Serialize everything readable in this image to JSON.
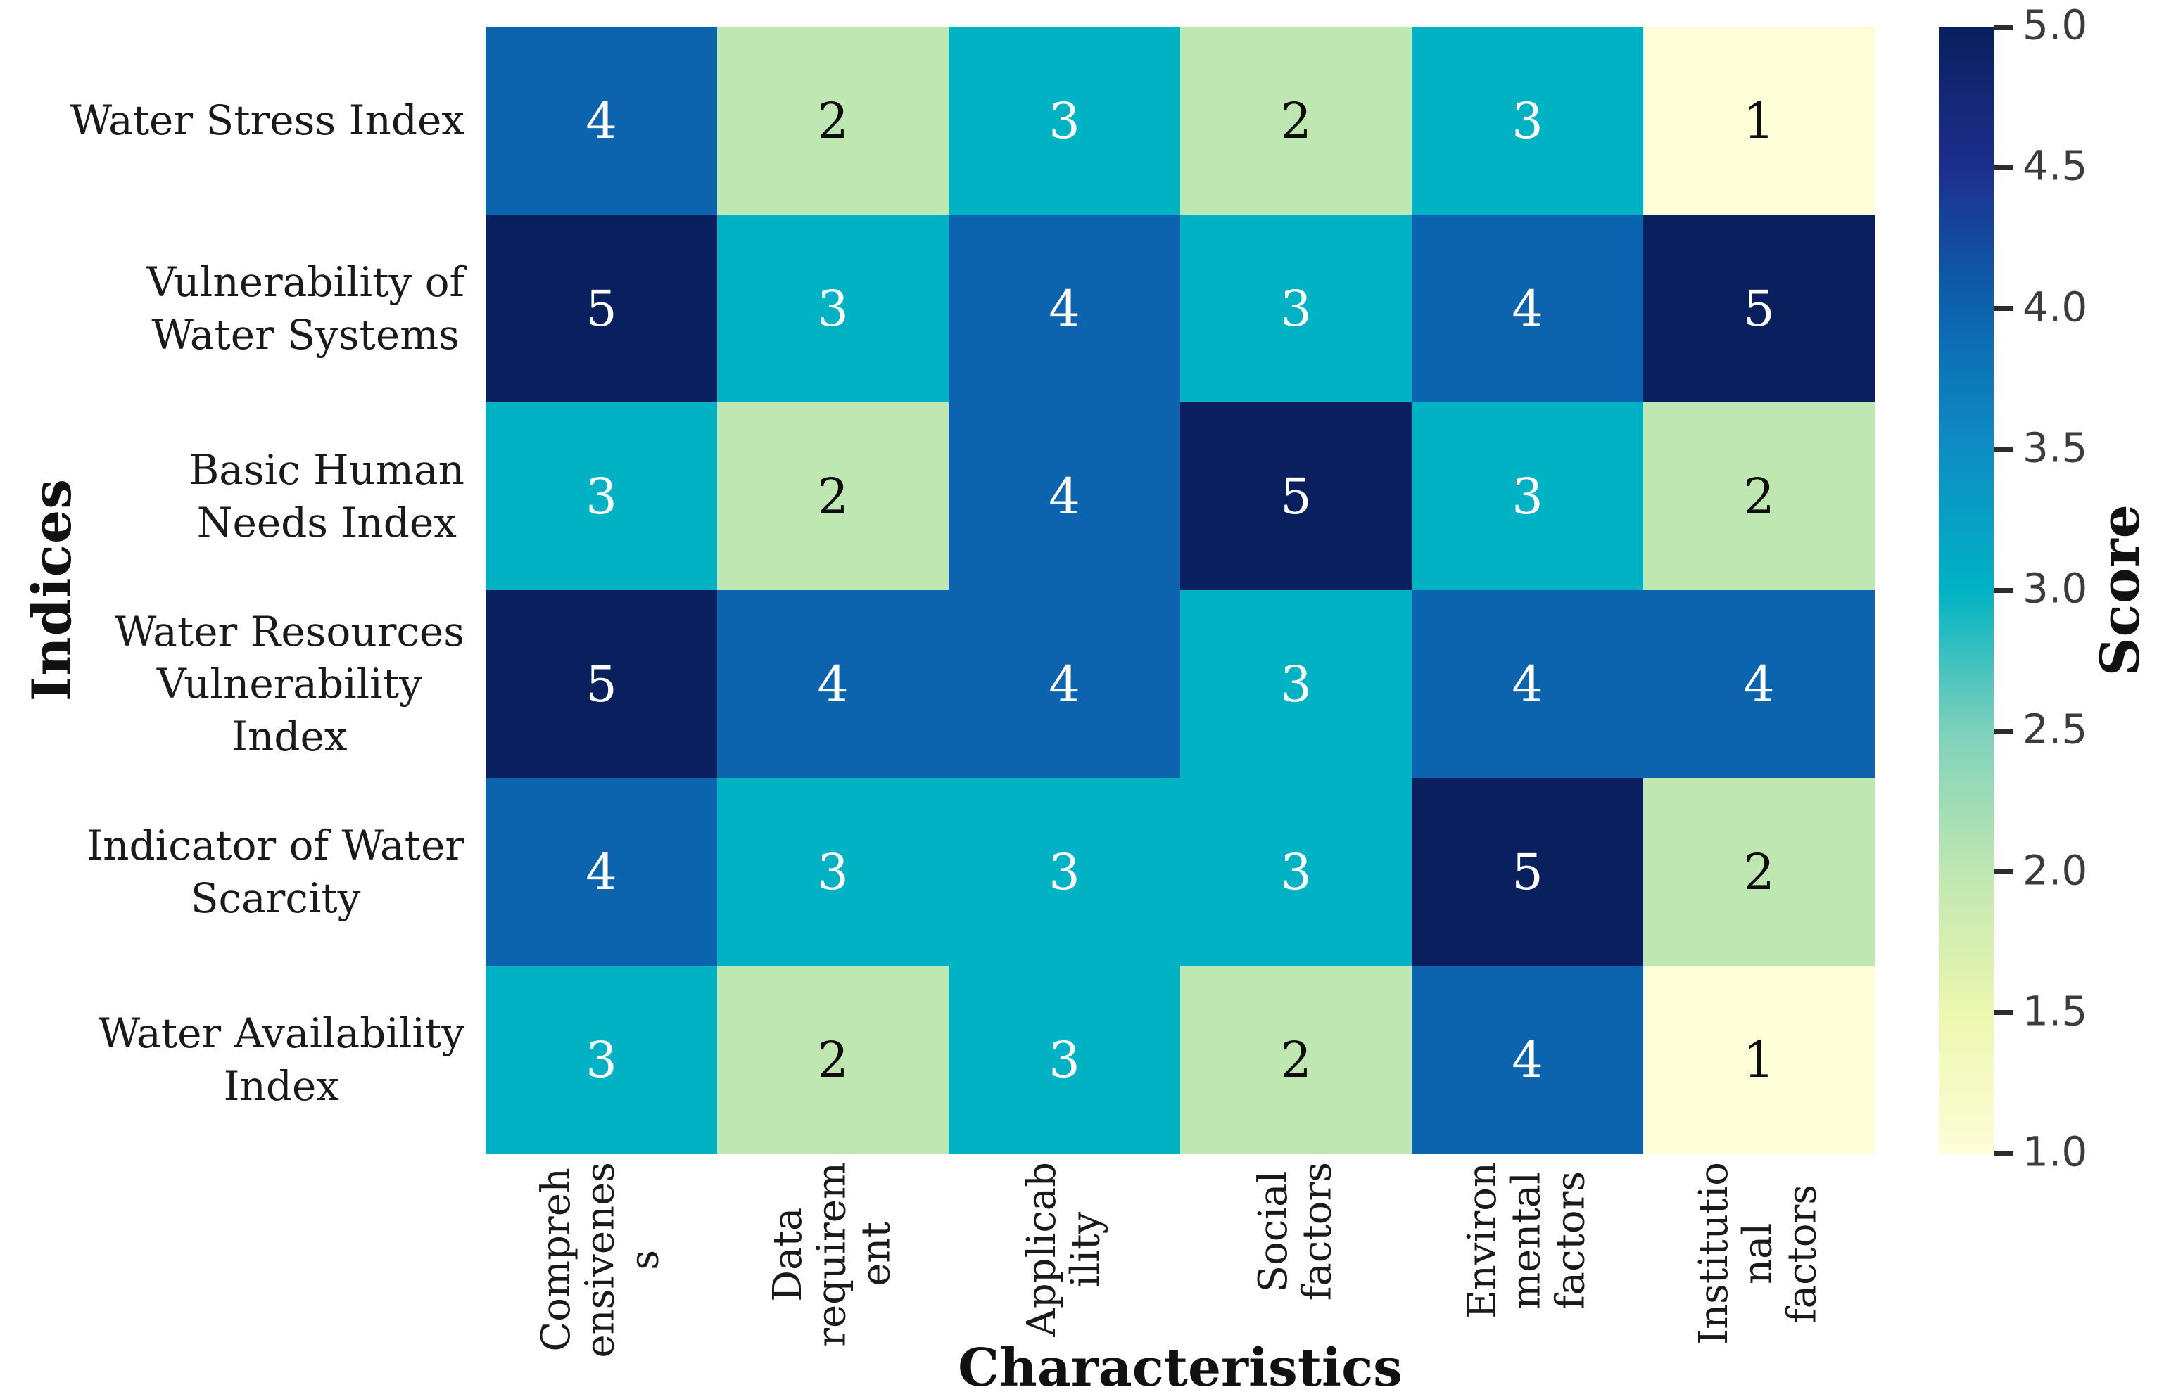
{
  "chart_data": {
    "type": "heatmap",
    "title": "",
    "xlabel": "Characteristics",
    "ylabel": "Indices",
    "colorbar_label": "Score",
    "x_categories": [
      "Comprehensiveness",
      "Data requirement",
      "Applicability",
      "Social factors",
      "Environmental factors",
      "Institutional factors"
    ],
    "x_tick_display": [
      "Compreh\nensivenes\ns",
      "Data\nrequirem\nent",
      "Applicab\nility",
      "Social\nfactors",
      "Environ\nmental\nfactors",
      "Institutio\nnal\nfactors"
    ],
    "y_categories": [
      "Water Stress Index",
      "Vulnerability of Water Systems",
      "Basic Human Needs Index",
      "Water Resources Vulnerability Index",
      "Indicator of Water Scarcity",
      "Water Availability Index"
    ],
    "y_tick_display": [
      "Water Stress Index",
      "Vulnerability of\nWater Systems",
      "Basic Human\nNeeds Index",
      "Water Resources\nVulnerability\nIndex",
      "Indicator of Water\nScarcity",
      "Water Availability\nIndex"
    ],
    "values": [
      [
        4,
        2,
        3,
        2,
        3,
        1
      ],
      [
        5,
        3,
        4,
        3,
        4,
        5
      ],
      [
        3,
        2,
        4,
        5,
        3,
        2
      ],
      [
        5,
        4,
        4,
        3,
        4,
        4
      ],
      [
        4,
        3,
        3,
        3,
        5,
        2
      ],
      [
        3,
        2,
        3,
        2,
        4,
        1
      ]
    ],
    "value_colors": {
      "1": "#fdfdd7",
      "2": "#bfe7b2",
      "3": "#00b2c4",
      "4": "#0c63ae",
      "5": "#0a1f5e"
    },
    "annotation_text_colors": {
      "dark_cells": "#ffffff",
      "light_cells": "#0d0d0d"
    },
    "colorbar": {
      "min": 1.0,
      "max": 5.0,
      "tick_labels": [
        "5.0",
        "4.5",
        "4.0",
        "3.5",
        "3.0",
        "2.5",
        "2.0",
        "1.5",
        "1.0"
      ],
      "tick_values": [
        5.0,
        4.5,
        4.0,
        3.5,
        3.0,
        2.5,
        2.0,
        1.5,
        1.0
      ],
      "gradient_stops": [
        {
          "value": 1.0,
          "color": "#fdfdd7"
        },
        {
          "value": 1.5,
          "color": "#ecf7af"
        },
        {
          "value": 2.0,
          "color": "#bfe7b2"
        },
        {
          "value": 2.5,
          "color": "#7dd1bb"
        },
        {
          "value": 3.0,
          "color": "#00b2c4"
        },
        {
          "value": 3.5,
          "color": "#0e8ec4"
        },
        {
          "value": 4.0,
          "color": "#0c63ae"
        },
        {
          "value": 4.5,
          "color": "#1c2f8d"
        },
        {
          "value": 5.0,
          "color": "#0a1f5e"
        }
      ],
      "legend_position": "right"
    },
    "grid": "off"
  }
}
